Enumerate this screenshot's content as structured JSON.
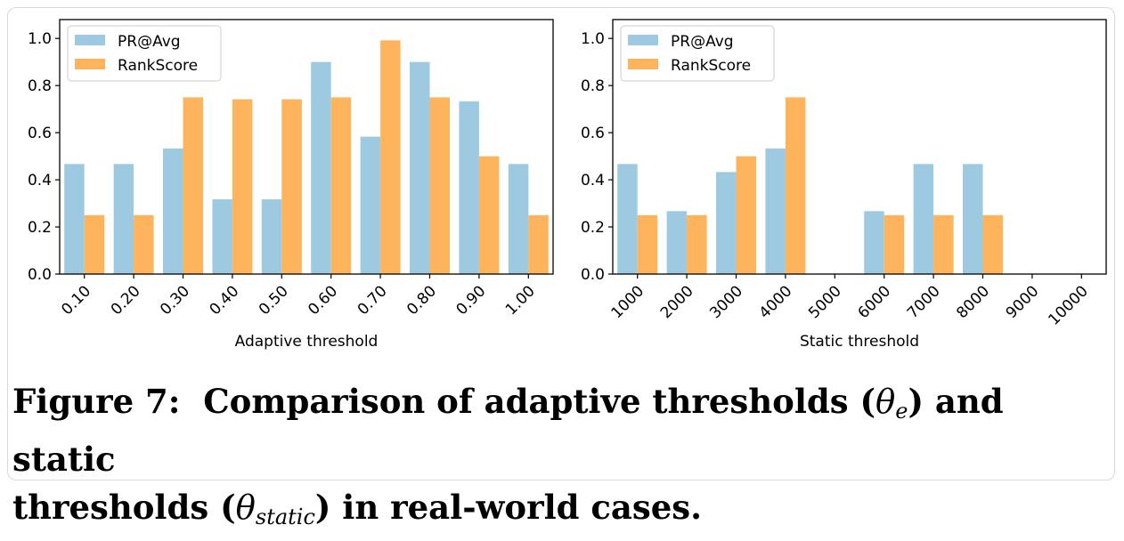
{
  "caption": {
    "label": "Figure 7:",
    "text_1": "Comparison of adaptive thresholds (",
    "theta_e": "θ",
    "theta_e_sub": "e",
    "text_2": ") and static",
    "text_3": "thresholds (",
    "theta_s": "θ",
    "theta_s_sub": "static",
    "text_4": ") in real-world cases."
  },
  "colors": {
    "pr_avg": "#9ecae1",
    "rankscore": "#fdb45c"
  },
  "chart_data": [
    {
      "type": "bar",
      "xlabel": "Adaptive threshold",
      "ylabel": "",
      "ylim": [
        0,
        1.08
      ],
      "yticks": [
        "0.0",
        "0.2",
        "0.4",
        "0.6",
        "0.8",
        "1.0"
      ],
      "grid": false,
      "legend": "top-left",
      "categories": [
        "0.10",
        "0.20",
        "0.30",
        "0.40",
        "0.50",
        "0.60",
        "0.70",
        "0.80",
        "0.90",
        "1.00"
      ],
      "series": [
        {
          "name": "PR@Avg",
          "values": [
            0.467,
            0.467,
            0.533,
            0.317,
            0.317,
            0.9,
            0.583,
            0.9,
            0.733,
            0.467
          ]
        },
        {
          "name": "RankScore",
          "values": [
            0.25,
            0.25,
            0.75,
            0.742,
            0.742,
            0.75,
            0.992,
            0.75,
            0.5,
            0.25
          ]
        }
      ]
    },
    {
      "type": "bar",
      "xlabel": "Static threshold",
      "ylabel": "",
      "ylim": [
        0,
        1.08
      ],
      "yticks": [
        "0.0",
        "0.2",
        "0.4",
        "0.6",
        "0.8",
        "1.0"
      ],
      "grid": false,
      "legend": "top-left",
      "categories": [
        "1000",
        "2000",
        "3000",
        "4000",
        "5000",
        "6000",
        "7000",
        "8000",
        "9000",
        "10000"
      ],
      "series": [
        {
          "name": "PR@Avg",
          "values": [
            0.467,
            0.267,
            0.433,
            0.533,
            0,
            0.267,
            0.467,
            0.467,
            0,
            0
          ]
        },
        {
          "name": "RankScore",
          "values": [
            0.25,
            0.25,
            0.5,
            0.75,
            0,
            0.25,
            0.25,
            0.25,
            0,
            0
          ]
        }
      ]
    }
  ]
}
